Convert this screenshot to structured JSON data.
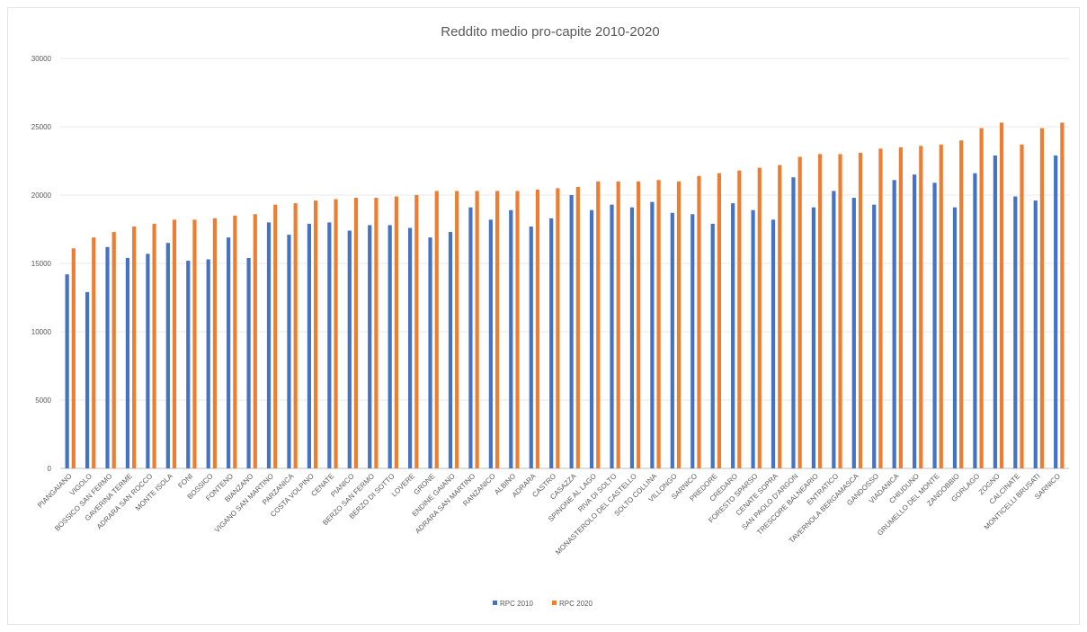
{
  "chart_data": {
    "type": "bar",
    "title": "Reddito medio pro-capite 2010-2020",
    "xlabel": "",
    "ylabel": "",
    "ylim": [
      0,
      30000
    ],
    "yticks": [
      0,
      5000,
      10000,
      15000,
      20000,
      25000,
      30000
    ],
    "grid": true,
    "legend_position": "bottom",
    "categories": [
      "PIANGAIANO",
      "VIGOLO",
      "BOSSICO SAN FERMO",
      "GAVERINA TERME",
      "ADRARA SAN ROCCO",
      "MONTE ISOLA",
      "FONI",
      "BOSSICO",
      "FONTENO",
      "BIANZANO",
      "VIGANO SAN MARTINO",
      "PARZANICA",
      "COSTA VOLPINO",
      "CENATE",
      "PIANICO",
      "BERZO SAN FERMO",
      "BERZO DI SOTTO",
      "LOVERE",
      "GRONE",
      "ENDINE GAIANO",
      "ADRARA SAN MARTINO",
      "RANZANICO",
      "ALBINO",
      "ADRARA",
      "CASTRO",
      "CASAZZA",
      "SPINONE AL LAGO",
      "RIVA DI SOLTO",
      "MONASTEROLO DEL CASTELLO",
      "SOLTO COLLINA",
      "VILLONGO",
      "SARNICO",
      "PREDORE",
      "CREDARO",
      "FORESTO SPARSO",
      "CENATE SOPRA",
      "SAN PAOLO D'ARGON",
      "TRESCORE BALNEARIO",
      "ENTRATICO",
      "TAVERNOLA BERGAMASCA",
      "GANDOSSO",
      "VIADANICA",
      "CHIUDUNO",
      "GRUMELLO DEL MONTE",
      "ZANDOBBIO",
      "GORLAGO",
      "ZOGNO",
      "CALCINATE",
      "MONTICELLI BRUSATI",
      "SARNICO"
    ],
    "xtick_labels_rotation": -45,
    "series": [
      {
        "name": "RPC 2010",
        "color": "#4472c4",
        "values": [
          14200,
          12900,
          16200,
          15400,
          15700,
          16500,
          15200,
          15300,
          16900,
          15400,
          18000,
          17100,
          17900,
          18000,
          17400,
          17800,
          17800,
          17600,
          16900,
          17300,
          19100,
          18200,
          18900,
          17700,
          18300,
          20000,
          18900,
          19300,
          19100,
          19500,
          18700,
          18600,
          17900,
          19400,
          18900,
          18200,
          21300,
          19100,
          20300,
          19800,
          19300,
          21100,
          21500,
          20900,
          19100,
          21600,
          22900,
          19900,
          19600,
          22900
        ]
      },
      {
        "name": "RPC 2020",
        "color": "#ed7d31",
        "values": [
          16100,
          16900,
          17300,
          17700,
          17900,
          18200,
          18200,
          18300,
          18500,
          18600,
          19300,
          19400,
          19600,
          19700,
          19800,
          19800,
          19900,
          20000,
          20300,
          20300,
          20300,
          20300,
          20300,
          20400,
          20500,
          20600,
          21000,
          21000,
          21000,
          21100,
          21000,
          21400,
          21600,
          21800,
          22000,
          22200,
          22800,
          23000,
          23000,
          23100,
          23400,
          23500,
          23600,
          23700,
          24000,
          24900,
          25300,
          23700,
          24900,
          25300
        ]
      }
    ]
  }
}
